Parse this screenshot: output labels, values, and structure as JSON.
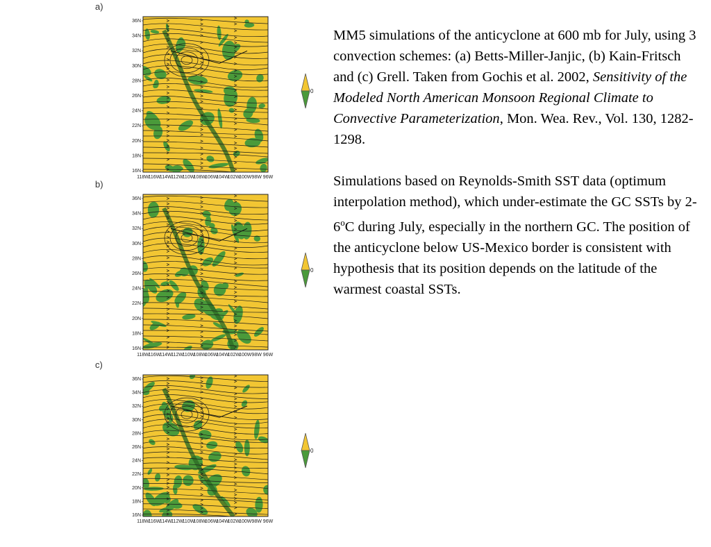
{
  "panels": [
    {
      "label": "a)",
      "wind_scale": "0"
    },
    {
      "label": "b)",
      "wind_scale": "0"
    },
    {
      "label": "c)",
      "wind_scale": "0"
    }
  ],
  "map_axes": {
    "lat_labels": [
      "36N",
      "34N",
      "32N",
      "30N",
      "28N",
      "26N",
      "24N",
      "22N",
      "20N",
      "18N",
      "16N"
    ],
    "lon_labels": [
      "118W",
      "116W",
      "114W",
      "112W",
      "110W",
      "108W",
      "106W",
      "104W",
      "102W",
      "100W",
      "98W",
      "96W"
    ]
  },
  "colors": {
    "land_fill": "#f2c633",
    "precip_fill": "#4a9a3a",
    "streamline": "#1a1a1a"
  },
  "caption": {
    "p1_intro": "MM5 simulations of the anticyclone at 600 mb for July, using 3 convection schemes: (a) Betts-Miller-Janjic, (b) Kain-Fritsch and (c) Grell. Taken from Gochis et al. 2002, ",
    "p1_title": "Sensitivity of the Modeled North American Monsoon Regional Climate to Convective Parameterization",
    "p1_ref": ", Mon. Wea. Rev., Vol. 130, 1282-1298.",
    "p2_a": "Simulations based on Reynolds-Smith SST data (optimum interpolation method), which under-estimate the GC SSTs by 2-6",
    "p2_sup": "o",
    "p2_b": "C during July, especially in the northern GC.  The position of the anticyclone below US-Mexico border is consistent with hypothesis that its position depends on the latitude of the warmest coastal SSTs."
  }
}
